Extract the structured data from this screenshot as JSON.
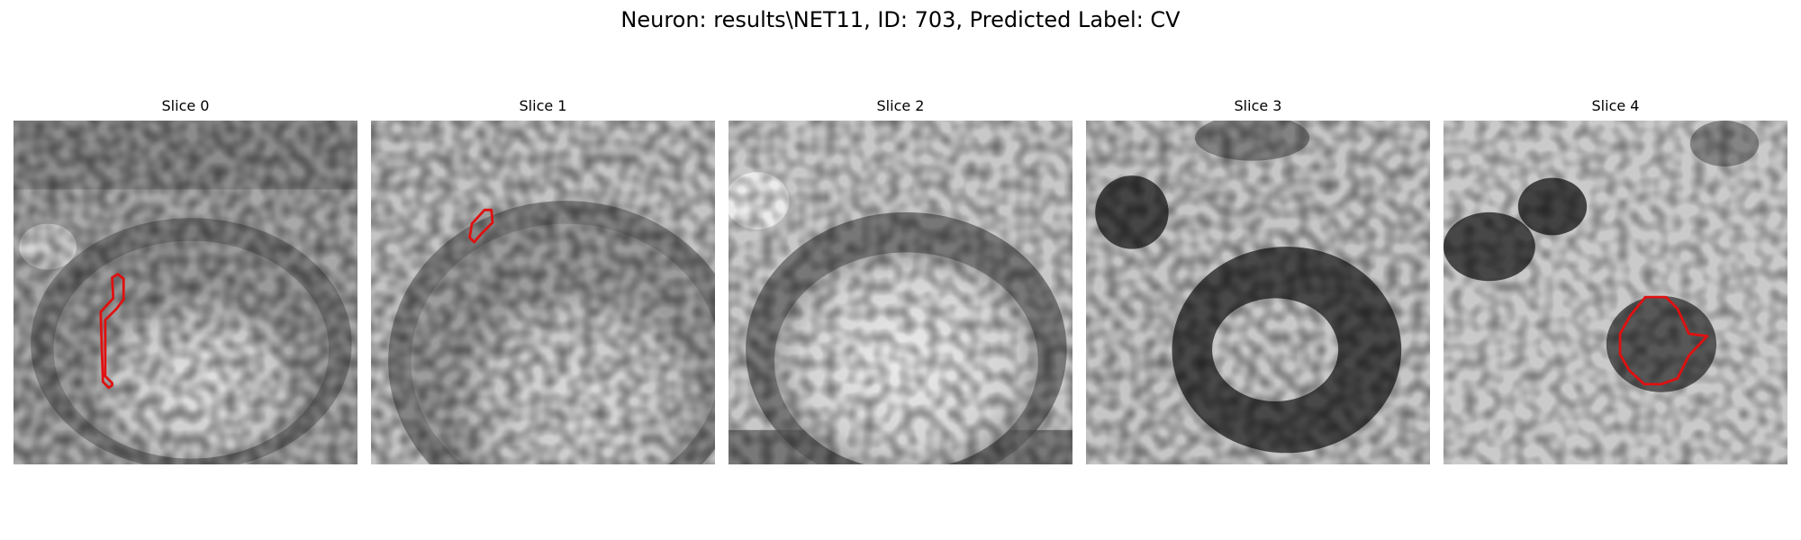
{
  "figure": {
    "title": "Neuron: results\\NET11, ID: 703, Predicted Label: CV",
    "contour_color": "#e01010"
  },
  "slices": [
    {
      "label": "Slice 0",
      "has_contour": true
    },
    {
      "label": "Slice 1",
      "has_contour": true
    },
    {
      "label": "Slice 2",
      "has_contour": false
    },
    {
      "label": "Slice 3",
      "has_contour": false
    },
    {
      "label": "Slice 4",
      "has_contour": true
    }
  ]
}
